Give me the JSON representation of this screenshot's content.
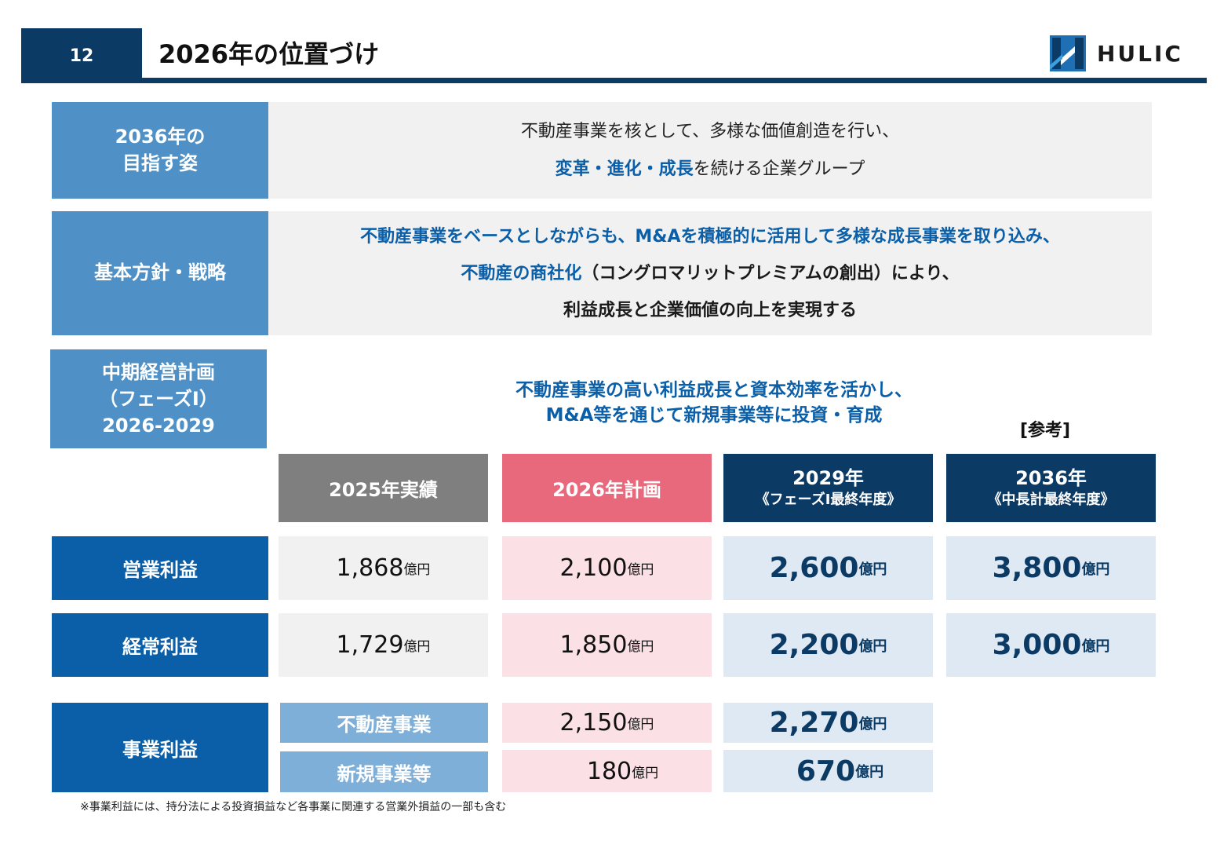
{
  "header": {
    "page_number": "12",
    "title": "2026年の位置づけ",
    "logo_text": "HULIC",
    "logo_icon": "hulic-logo-mark",
    "brand_color": "#0b3a64"
  },
  "vision": {
    "label_line1": "2036年の",
    "label_line2": "目指す姿",
    "line1": "不動産事業を核として、多様な価値創造を行い、",
    "line2_emphasis": "変革・進化・成長",
    "line2_rest": "を続ける企業グループ"
  },
  "policy": {
    "label": "基本方針・戦略",
    "line1": "不動産事業をベースとしながらも、M&Aを積極的に活用して多様な成長事業を取り込み、",
    "line2_emphasis": "不動産の商社化",
    "line2_rest": "（コングロマリットプレミアムの創出）により、",
    "line3": "利益成長と企業価値の向上を実現する"
  },
  "plan": {
    "label_line1": "中期経営計画",
    "label_line2": "（フェーズⅠ）",
    "label_line3": "2026-2029",
    "line1": "不動産事業の高い利益成長と資本効率を活かし、",
    "line2": "M&A等を通じて新規事業等に投資・育成",
    "reference_note": "[参考]"
  },
  "columns": [
    {
      "main": "2025年実績",
      "sub": ""
    },
    {
      "main": "2026年計画",
      "sub": ""
    },
    {
      "main": "2029年",
      "sub": "《フェーズⅠ最終年度》"
    },
    {
      "main": "2036年",
      "sub": "《中長計最終年度》"
    }
  ],
  "unit": "億円",
  "rows": {
    "operating_profit": {
      "label": "営業利益",
      "values": [
        "1,868",
        "2,100",
        "2,600",
        "3,800"
      ]
    },
    "ordinary_profit": {
      "label": "経常利益",
      "values": [
        "1,729",
        "1,850",
        "2,200",
        "3,000"
      ]
    },
    "business_profit": {
      "label": "事業利益",
      "segments": [
        {
          "name": "不動産事業",
          "values": [
            "2,150",
            "2,270"
          ]
        },
        {
          "name": "新規事業等",
          "values": [
            "180",
            "670"
          ]
        }
      ]
    }
  },
  "footnote": "※事業利益には、持分法による投資損益など各事業に関連する営業外損益の一部も含む",
  "colors": {
    "label_blue": "#4f91c6",
    "label_dark_blue": "#0a5fa8",
    "actual_gray": "#7f7f7f",
    "plan_pink": "#e8697c",
    "target_navy": "#0b3a64",
    "segment_light_blue": "#7eafd8"
  }
}
